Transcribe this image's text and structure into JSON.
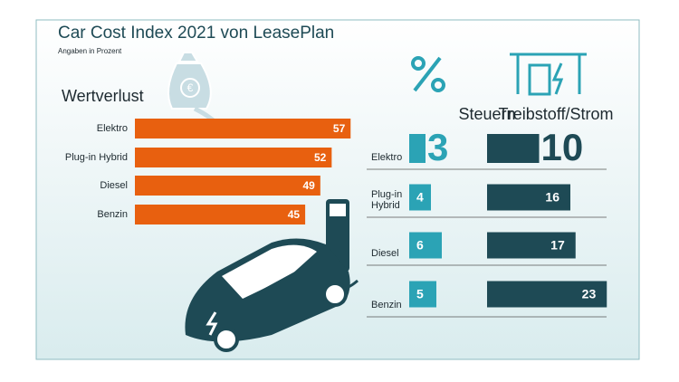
{
  "chart_data": [
    {
      "type": "bar",
      "orientation": "horizontal",
      "title": "Car Cost Index 2021 von LeasePlan",
      "subtitle": "Angaben in Prozent",
      "panel_title": "Wertverlust",
      "categories": [
        "Elektro",
        "Plug-in Hybrid",
        "Diesel",
        "Benzin"
      ],
      "values": [
        57,
        52,
        49,
        45
      ],
      "color": "#e8600f"
    },
    {
      "type": "bar",
      "orientation": "horizontal",
      "categories": [
        "Elektro",
        "Plug-in Hybrid",
        "Diesel",
        "Benzin"
      ],
      "series": [
        {
          "name": "Steuern",
          "color": "#2ba3b5",
          "values": [
            3,
            4,
            6,
            5
          ]
        },
        {
          "name": "Treibstoff/Strom",
          "color": "#1e4a55",
          "values": [
            10,
            16,
            17,
            23
          ]
        }
      ]
    }
  ]
}
